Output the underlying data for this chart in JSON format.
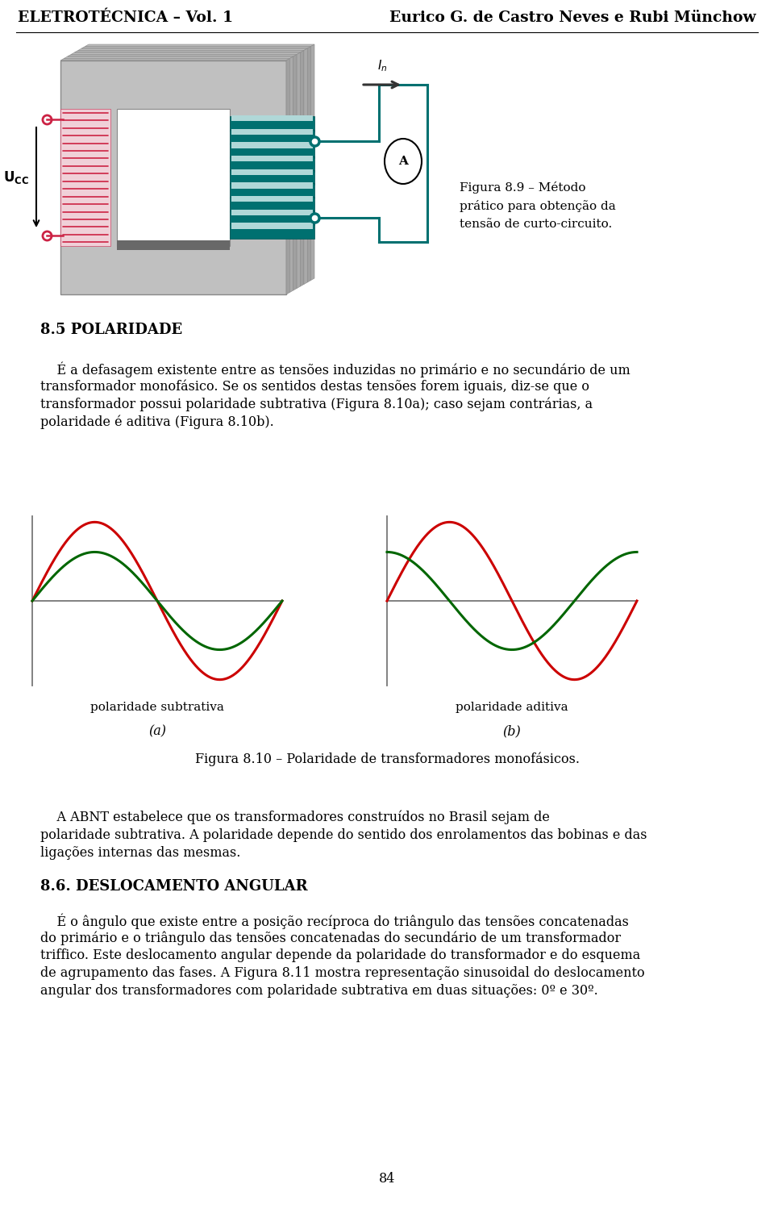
{
  "header_left": "ELETROTÉCNICA – Vol. 1",
  "header_right": "Eurico G. de Castro Neves e Rubi Münchow",
  "section_85_title": "8.5 POLARIDADE",
  "para_85_line1": "    É a defasagem existente entre as tensões induzidas no primário e no secundário de um",
  "para_85_line2": "transformador monofásico. Se os sentidos destas tensões forem iguais, diz-se que o",
  "para_85_line3": "transformador possui polaridade subtrativa (Figura 8.10a); caso sejam contrárias, a",
  "para_85_line4": "polaridade é aditiva (Figura 8.10b).",
  "label_subtrativa": "polaridade subtrativa",
  "label_aditiva": "polaridade aditiva",
  "label_a": "(a)",
  "label_b": "(b)",
  "fig_caption": "Figura 8.10 – Polaridade de transformadores monofásicos.",
  "fig89_cap1": "Figura 8.9 – Método",
  "fig89_cap2": "prático para obtenção da",
  "fig89_cap3": "tensão de curto-circuito.",
  "abnt_line1": "    A ABNT estabelece que os transformadores construídos no Brasil sejam de",
  "abnt_line2": "polaridade subtrativa. A polaridade depende do sentido dos enrolamentos das bobinas e das",
  "abnt_line3": "ligações internas das mesmas.",
  "section_86_title": "8.6. DESLOCAMENTO ANGULAR",
  "sec86_line1": "    É o ângulo que existe entre a posição recíproca do triângulo das tensões concatenadas",
  "sec86_line2": "do primário e o triângulo das tensões concatenadas do secundário de um transformador",
  "sec86_line3": "triffico. Este deslocamento angular depende da polaridade do transformador e do esquema",
  "sec86_line4": "de agrupamento das fases. A Figura 8.11 mostra representação sinusoidal do deslocamento",
  "sec86_line5": "angular dos transformadores com polaridade subtrativa em duas situações: 0º e 30º.",
  "page_number": "84",
  "red_color": "#cc0000",
  "green_color": "#006600",
  "teal_color": "#007070",
  "teal_dark": "#005555",
  "axis_color": "#777777",
  "background": "#ffffff",
  "text_color": "#000000",
  "core_gray1": "#c0c0c0",
  "core_gray2": "#b0b0b0",
  "core_gray3": "#a0a0a0",
  "core_gray4": "#888888",
  "core_gray_dark": "#686868",
  "red_winding": "#cc4466",
  "num_points": 1000,
  "wave_red_amp": 1.0,
  "wave_green_amp": 0.62
}
